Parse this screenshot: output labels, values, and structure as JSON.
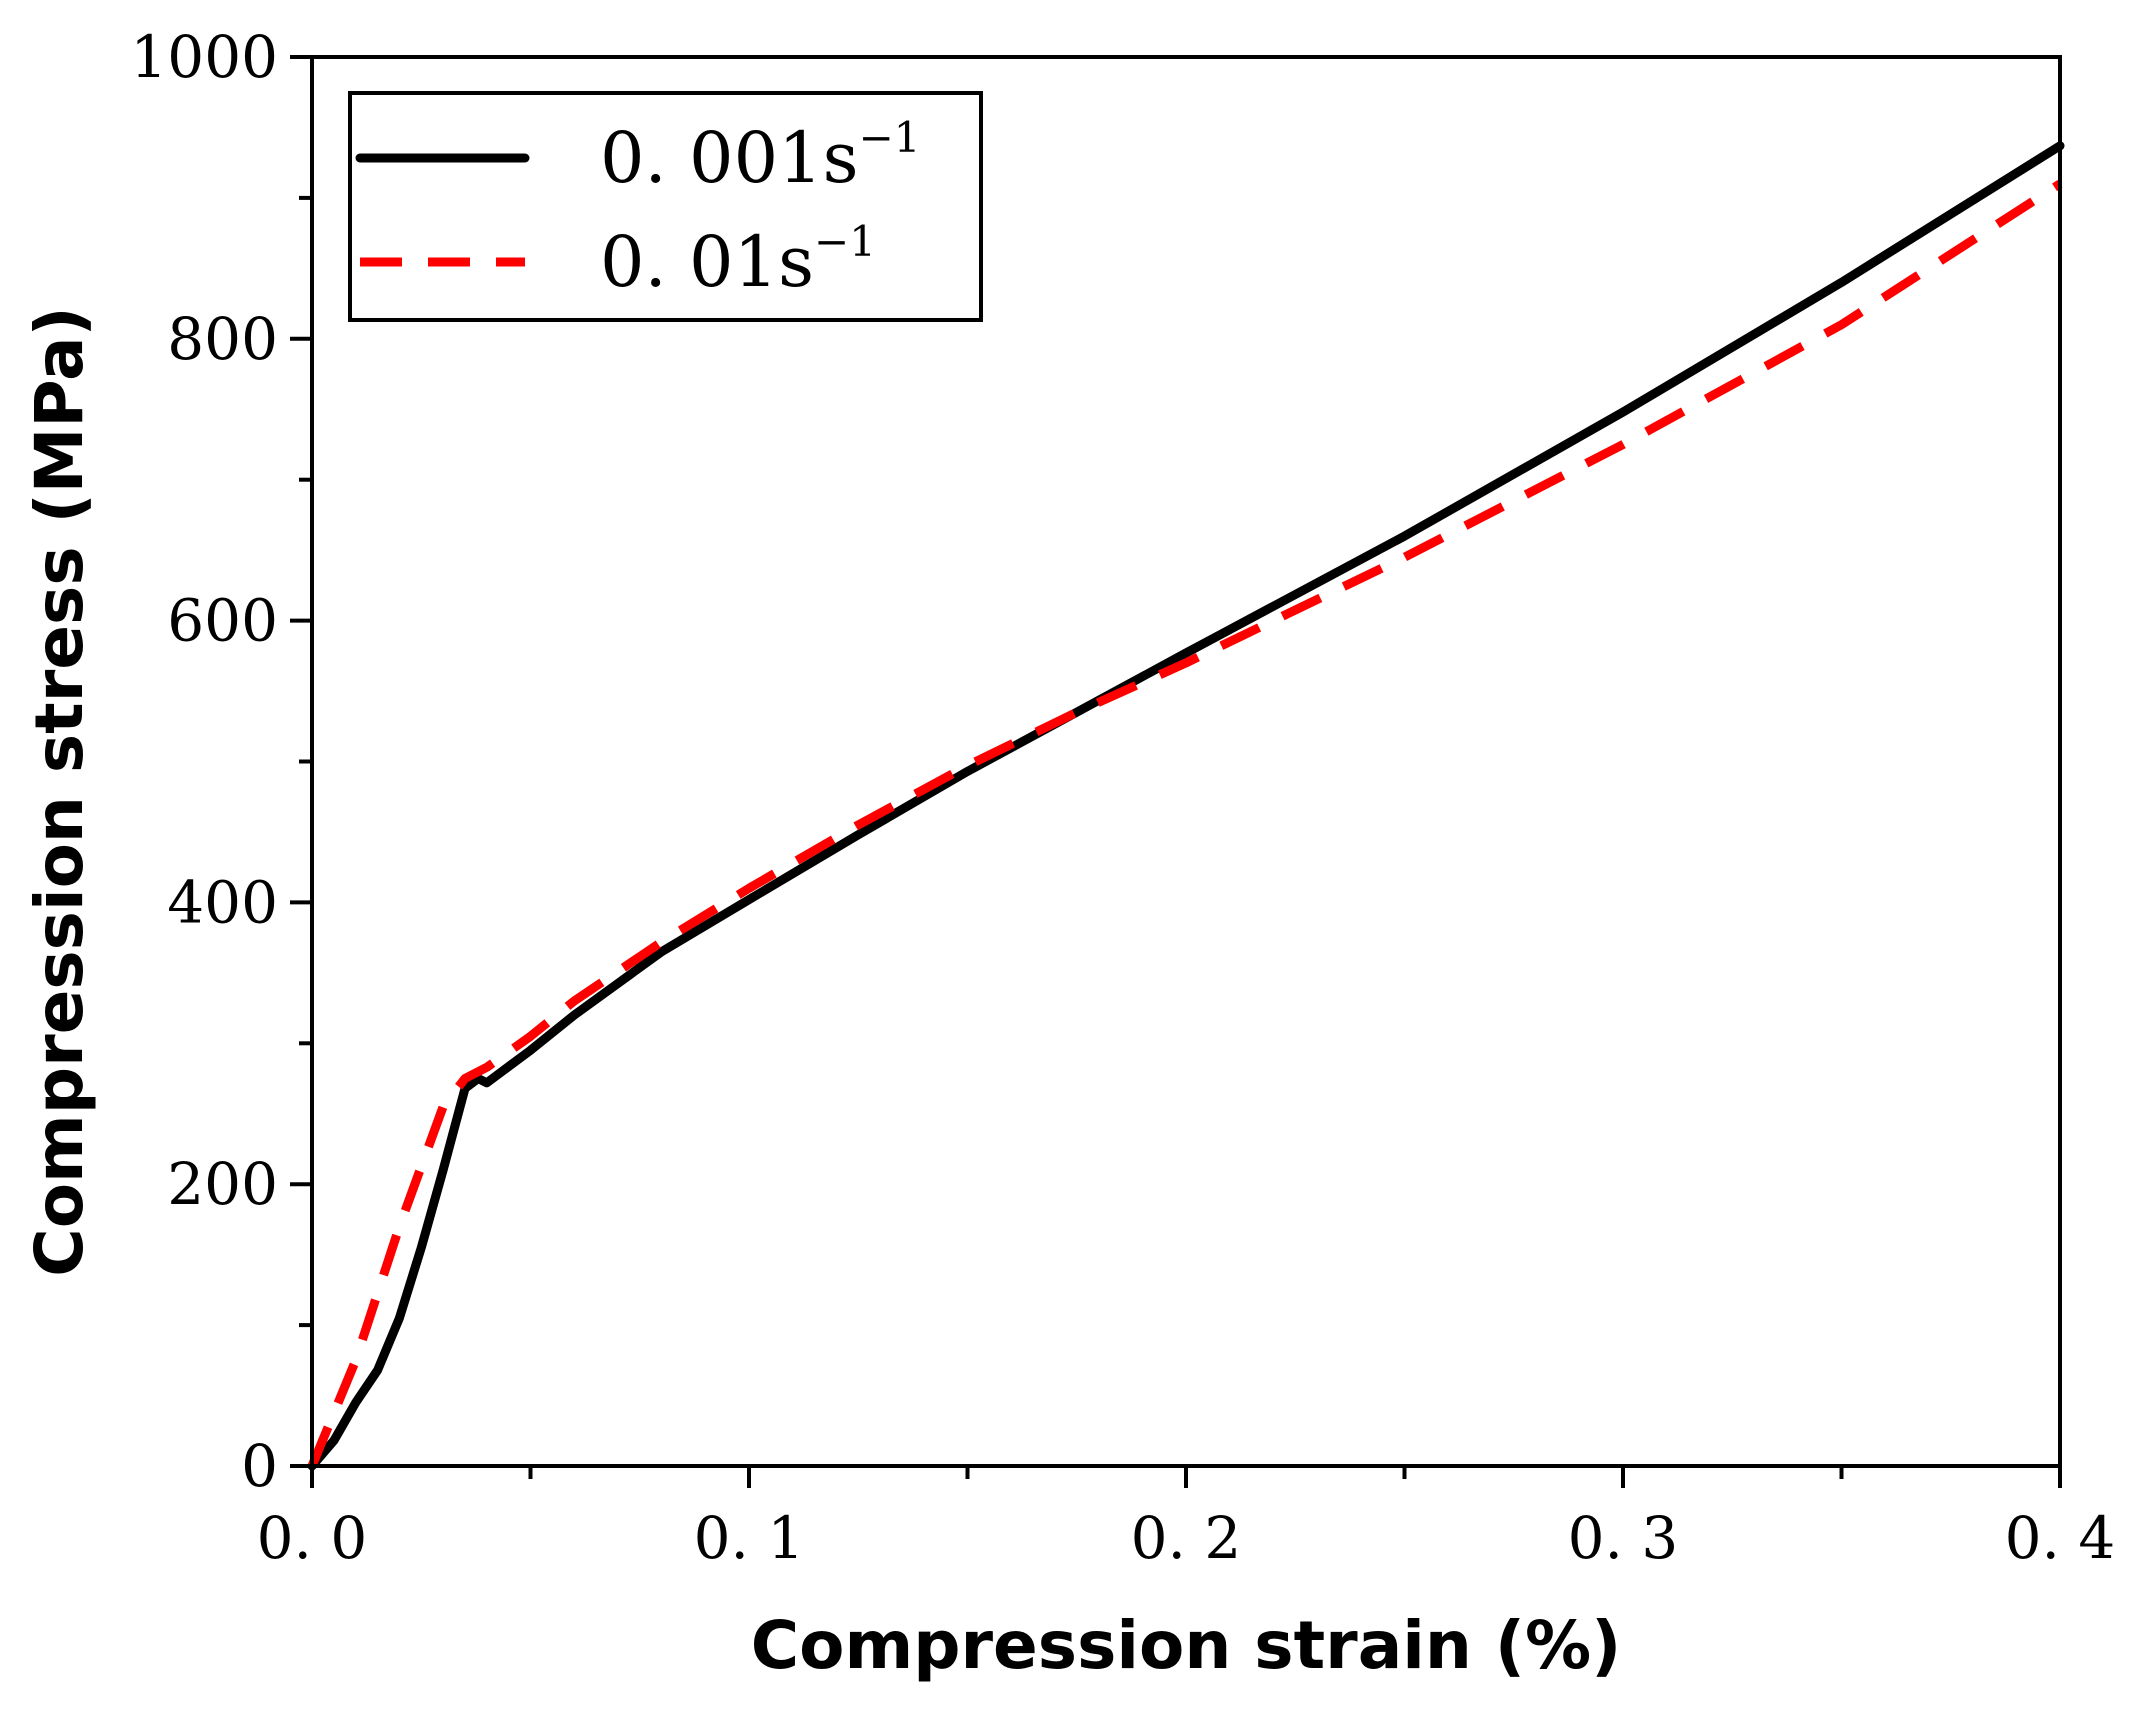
{
  "chart_data": {
    "type": "line",
    "title": "",
    "xlabel": "Compression strain (%)",
    "ylabel": "Compression stress (MPa)",
    "xlim": [
      0.0,
      0.4
    ],
    "ylim": [
      0,
      1000
    ],
    "x_ticks": [
      {
        "value": 0.0,
        "label": "0. 0"
      },
      {
        "value": 0.1,
        "label": "0. 1"
      },
      {
        "value": 0.2,
        "label": "0. 2"
      },
      {
        "value": 0.3,
        "label": "0. 3"
      },
      {
        "value": 0.4,
        "label": "0. 4"
      }
    ],
    "x_minor_ticks": [
      0.05,
      0.15,
      0.25,
      0.35
    ],
    "y_ticks": [
      {
        "value": 0,
        "label": "0"
      },
      {
        "value": 200,
        "label": "200"
      },
      {
        "value": 400,
        "label": "400"
      },
      {
        "value": 600,
        "label": "600"
      },
      {
        "value": 800,
        "label": "800"
      },
      {
        "value": 1000,
        "label": "1000"
      }
    ],
    "y_minor_ticks": [
      100,
      300,
      500,
      700,
      900
    ],
    "grid": false,
    "legend_position": "top-left",
    "series": [
      {
        "name": "0. 001s",
        "name_sup": "−1",
        "color": "#000000",
        "style": "solid",
        "x": [
          0.0,
          0.005,
          0.01,
          0.015,
          0.02,
          0.025,
          0.03,
          0.035,
          0.038,
          0.04,
          0.05,
          0.06,
          0.08,
          0.1,
          0.125,
          0.15,
          0.175,
          0.2,
          0.25,
          0.3,
          0.35,
          0.4
        ],
        "y": [
          0,
          18,
          45,
          68,
          105,
          155,
          210,
          268,
          275,
          272,
          295,
          320,
          365,
          402,
          448,
          493,
          535,
          577,
          660,
          748,
          840,
          937
        ]
      },
      {
        "name": "0. 01s",
        "name_sup": "−1",
        "color": "#ff0000",
        "style": "dashed",
        "x": [
          0.0,
          0.01,
          0.02,
          0.03,
          0.035,
          0.04,
          0.05,
          0.06,
          0.08,
          0.1,
          0.125,
          0.15,
          0.175,
          0.2,
          0.25,
          0.3,
          0.35,
          0.4
        ],
        "y": [
          0,
          75,
          170,
          255,
          275,
          283,
          305,
          330,
          372,
          410,
          455,
          497,
          535,
          570,
          645,
          725,
          810,
          910
        ]
      }
    ]
  }
}
